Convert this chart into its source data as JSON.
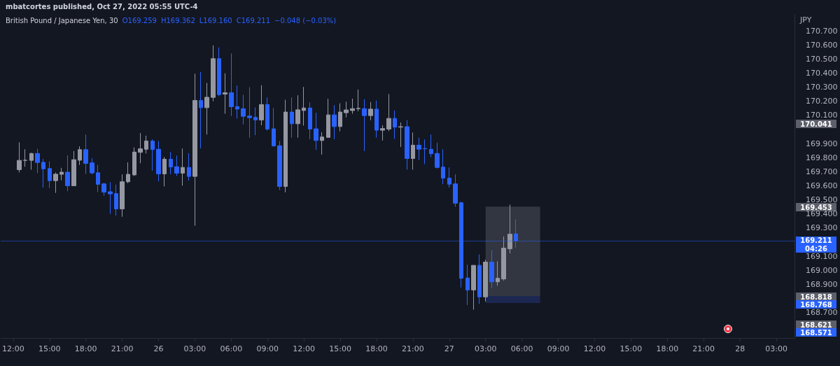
{
  "chart_data": {
    "type": "candlestick",
    "title": "mbatcortes published, Oct 27, 2022 05:55 UTC-4",
    "subtitle": "British Pound / Japanese Yen, 30",
    "ylabel": "JPY",
    "x": [
      "2022-10-25T12:30",
      "2022-10-25T13:00",
      "2022-10-25T13:30",
      "2022-10-25T14:00",
      "2022-10-25T14:30",
      "2022-10-25T15:00",
      "2022-10-25T15:30",
      "2022-10-25T16:00",
      "2022-10-25T16:30",
      "2022-10-25T17:00",
      "2022-10-25T17:30",
      "2022-10-25T18:00",
      "2022-10-25T18:30",
      "2022-10-25T19:00",
      "2022-10-25T19:30",
      "2022-10-25T20:00",
      "2022-10-25T20:30",
      "2022-10-25T21:00",
      "2022-10-25T21:30",
      "2022-10-25T22:00",
      "2022-10-25T22:30",
      "2022-10-25T23:00",
      "2022-10-25T23:30",
      "2022-10-26T00:00",
      "2022-10-26T00:30",
      "2022-10-26T01:00",
      "2022-10-26T01:30",
      "2022-10-26T02:00",
      "2022-10-26T02:30",
      "2022-10-26T03:00",
      "2022-10-26T03:30",
      "2022-10-26T04:00",
      "2022-10-26T04:30",
      "2022-10-26T05:00",
      "2022-10-26T05:30",
      "2022-10-26T06:00",
      "2022-10-26T06:30",
      "2022-10-26T07:00",
      "2022-10-26T07:30",
      "2022-10-26T08:00",
      "2022-10-26T08:30",
      "2022-10-26T09:00",
      "2022-10-26T09:30",
      "2022-10-26T10:00",
      "2022-10-26T10:30",
      "2022-10-26T11:00",
      "2022-10-26T11:30",
      "2022-10-26T12:00",
      "2022-10-26T12:30",
      "2022-10-26T13:00",
      "2022-10-26T13:30",
      "2022-10-26T14:00",
      "2022-10-26T14:30",
      "2022-10-26T15:00",
      "2022-10-26T15:30",
      "2022-10-26T16:00",
      "2022-10-26T16:30",
      "2022-10-26T17:00",
      "2022-10-26T17:30",
      "2022-10-26T18:00",
      "2022-10-26T18:30",
      "2022-10-26T19:00",
      "2022-10-26T19:30",
      "2022-10-26T20:00",
      "2022-10-26T20:30",
      "2022-10-26T21:00",
      "2022-10-26T21:30",
      "2022-10-26T22:00",
      "2022-10-26T22:30",
      "2022-10-26T23:00",
      "2022-10-26T23:30",
      "2022-10-27T00:00",
      "2022-10-27T00:30",
      "2022-10-27T01:00",
      "2022-10-27T01:30",
      "2022-10-27T02:00",
      "2022-10-27T02:30",
      "2022-10-27T03:00",
      "2022-10-27T03:30",
      "2022-10-27T04:00",
      "2022-10-27T04:30",
      "2022-10-27T05:00",
      "2022-10-27T05:30"
    ],
    "ohlc": [
      [
        169.715,
        169.909,
        169.695,
        169.781
      ],
      [
        169.781,
        169.86,
        169.736,
        169.782
      ],
      [
        169.781,
        169.835,
        169.715,
        169.83
      ],
      [
        169.83,
        169.863,
        169.69,
        169.766
      ],
      [
        169.767,
        169.791,
        169.588,
        169.721
      ],
      [
        169.723,
        169.774,
        169.584,
        169.637
      ],
      [
        169.637,
        169.695,
        169.55,
        169.683
      ],
      [
        169.682,
        169.728,
        169.64,
        169.697
      ],
      [
        169.697,
        169.817,
        169.563,
        169.601
      ],
      [
        169.601,
        169.847,
        169.601,
        169.786
      ],
      [
        169.782,
        169.881,
        169.748,
        169.857
      ],
      [
        169.857,
        169.964,
        169.685,
        169.759
      ],
      [
        169.763,
        169.796,
        169.682,
        169.692
      ],
      [
        169.693,
        169.749,
        169.556,
        169.611
      ],
      [
        169.614,
        169.621,
        169.53,
        169.556
      ],
      [
        169.558,
        169.626,
        169.401,
        169.543
      ],
      [
        169.545,
        169.609,
        169.388,
        169.436
      ],
      [
        169.436,
        169.682,
        169.381,
        169.629
      ],
      [
        169.629,
        169.767,
        169.619,
        169.682
      ],
      [
        169.678,
        169.873,
        169.67,
        169.84
      ],
      [
        169.838,
        169.975,
        169.761,
        169.863
      ],
      [
        169.86,
        169.956,
        169.83,
        169.919
      ],
      [
        169.918,
        169.931,
        169.708,
        169.858
      ],
      [
        169.86,
        169.918,
        169.632,
        169.685
      ],
      [
        169.685,
        169.805,
        169.596,
        169.789
      ],
      [
        169.789,
        169.84,
        169.682,
        169.734
      ],
      [
        169.736,
        169.815,
        169.67,
        169.69
      ],
      [
        169.69,
        169.865,
        169.601,
        169.731
      ],
      [
        169.731,
        169.832,
        169.637,
        169.667
      ],
      [
        169.667,
        170.396,
        169.317,
        170.206
      ],
      [
        170.206,
        170.409,
        169.866,
        170.155
      ],
      [
        170.155,
        170.33,
        169.964,
        170.229
      ],
      [
        170.228,
        170.597,
        170.201,
        170.503
      ],
      [
        170.503,
        170.583,
        170.236,
        170.248
      ],
      [
        170.251,
        170.399,
        170.112,
        170.261
      ],
      [
        170.261,
        170.54,
        170.096,
        170.162
      ],
      [
        170.163,
        170.312,
        170.078,
        170.145
      ],
      [
        170.148,
        170.246,
        170.036,
        170.094
      ],
      [
        170.096,
        170.3,
        169.942,
        170.084
      ],
      [
        170.086,
        170.157,
        169.959,
        170.068
      ],
      [
        170.068,
        170.314,
        170.03,
        170.177
      ],
      [
        170.177,
        170.228,
        169.992,
        170.003
      ],
      [
        170.005,
        170.152,
        169.883,
        169.883
      ],
      [
        169.885,
        169.918,
        169.571,
        169.596
      ],
      [
        169.596,
        170.211,
        169.554,
        170.124
      ],
      [
        170.124,
        170.228,
        169.942,
        170.041
      ],
      [
        170.041,
        170.243,
        169.942,
        170.14
      ],
      [
        170.135,
        170.302,
        170.028,
        170.153
      ],
      [
        170.153,
        170.193,
        169.931,
        170.003
      ],
      [
        170.005,
        170.119,
        169.856,
        169.922
      ],
      [
        169.922,
        169.98,
        169.822,
        169.947
      ],
      [
        169.944,
        170.218,
        169.944,
        170.104
      ],
      [
        170.104,
        170.173,
        169.931,
        170.021
      ],
      [
        170.021,
        170.186,
        169.987,
        170.124
      ],
      [
        170.119,
        170.198,
        170.086,
        170.139
      ],
      [
        170.135,
        170.219,
        170.112,
        170.148
      ],
      [
        170.148,
        170.284,
        170.129,
        170.15
      ],
      [
        170.148,
        170.215,
        169.847,
        170.099
      ],
      [
        170.099,
        170.195,
        170.066,
        170.145
      ],
      [
        170.145,
        170.206,
        169.942,
        169.995
      ],
      [
        169.995,
        170.03,
        169.922,
        170.007
      ],
      [
        170.003,
        170.252,
        169.988,
        170.079
      ],
      [
        170.079,
        170.135,
        169.934,
        170.017
      ],
      [
        170.017,
        170.05,
        169.876,
        170.02
      ],
      [
        170.02,
        170.066,
        169.715,
        169.794
      ],
      [
        169.794,
        169.979,
        169.715,
        169.889
      ],
      [
        169.889,
        169.942,
        169.784,
        169.86
      ],
      [
        169.865,
        169.929,
        169.754,
        169.863
      ],
      [
        169.86,
        169.965,
        169.804,
        169.828
      ],
      [
        169.83,
        169.906,
        169.724,
        169.731
      ],
      [
        169.733,
        169.86,
        169.612,
        169.655
      ],
      [
        169.655,
        169.731,
        169.588,
        169.612
      ],
      [
        169.614,
        169.682,
        169.452,
        169.477
      ],
      [
        169.48,
        169.487,
        168.878,
        168.944
      ],
      [
        168.946,
        169.04,
        168.754,
        168.861
      ],
      [
        168.861,
        169.036,
        168.721,
        169.036
      ],
      [
        169.036,
        169.114,
        168.762,
        168.812
      ],
      [
        168.812,
        169.076,
        168.779,
        169.059
      ],
      [
        169.059,
        169.144,
        168.873,
        168.919
      ],
      [
        168.919,
        169.064,
        168.891,
        168.944
      ],
      [
        168.939,
        169.241,
        168.927,
        169.158
      ],
      [
        169.153,
        169.467,
        169.121,
        169.257
      ],
      [
        169.259,
        169.362,
        169.16,
        169.211
      ]
    ],
    "colors": [
      "#9598a1",
      "#9598a1",
      "#9598a1",
      "#2962ff",
      "#2962ff",
      "#2962ff",
      "#9598a1",
      "#9598a1",
      "#2962ff",
      "#9598a1",
      "#9598a1",
      "#2962ff",
      "#2962ff",
      "#2962ff",
      "#2962ff",
      "#2962ff",
      "#2962ff",
      "#9598a1",
      "#9598a1",
      "#9598a1",
      "#9598a1",
      "#9598a1",
      "#2962ff",
      "#2962ff",
      "#9598a1",
      "#2962ff",
      "#2962ff",
      "#9598a1",
      "#2962ff",
      "#9598a1",
      "#2962ff",
      "#9598a1",
      "#9598a1",
      "#2962ff",
      "#9598a1",
      "#2962ff",
      "#2962ff",
      "#2962ff",
      "#2962ff",
      "#2962ff",
      "#9598a1",
      "#2962ff",
      "#2962ff",
      "#2962ff",
      "#9598a1",
      "#2962ff",
      "#9598a1",
      "#9598a1",
      "#2962ff",
      "#2962ff",
      "#9598a1",
      "#9598a1",
      "#2962ff",
      "#9598a1",
      "#9598a1",
      "#9598a1",
      "#9598a1",
      "#2962ff",
      "#9598a1",
      "#2962ff",
      "#9598a1",
      "#9598a1",
      "#2962ff",
      "#9598a1",
      "#2962ff",
      "#9598a1",
      "#2962ff",
      "#2962ff",
      "#2962ff",
      "#2962ff",
      "#2962ff",
      "#2962ff",
      "#2962ff",
      "#2962ff",
      "#2962ff",
      "#9598a1",
      "#2962ff",
      "#9598a1",
      "#2962ff",
      "#9598a1",
      "#9598a1",
      "#9598a1",
      "#2962ff"
    ],
    "xlim": [
      "2022-10-25T11:00",
      "2022-10-28T04:30"
    ],
    "xticks": [
      {
        "value": "2022-10-25T12:00",
        "label": "12:00"
      },
      {
        "value": "2022-10-25T15:00",
        "label": "15:00"
      },
      {
        "value": "2022-10-25T18:00",
        "label": "18:00"
      },
      {
        "value": "2022-10-25T21:00",
        "label": "21:00"
      },
      {
        "value": "2022-10-26T00:00",
        "label": "26"
      },
      {
        "value": "2022-10-26T03:00",
        "label": "03:00"
      },
      {
        "value": "2022-10-26T06:00",
        "label": "06:00"
      },
      {
        "value": "2022-10-26T09:00",
        "label": "09:00"
      },
      {
        "value": "2022-10-26T12:00",
        "label": "12:00"
      },
      {
        "value": "2022-10-26T15:00",
        "label": "15:00"
      },
      {
        "value": "2022-10-26T18:00",
        "label": "18:00"
      },
      {
        "value": "2022-10-26T21:00",
        "label": "21:00"
      },
      {
        "value": "2022-10-27T00:00",
        "label": "27"
      },
      {
        "value": "2022-10-27T03:00",
        "label": "03:00"
      },
      {
        "value": "2022-10-27T06:00",
        "label": "06:00"
      },
      {
        "value": "2022-10-27T09:00",
        "label": "09:00"
      },
      {
        "value": "2022-10-27T12:00",
        "label": "12:00"
      },
      {
        "value": "2022-10-27T15:00",
        "label": "15:00"
      },
      {
        "value": "2022-10-27T18:00",
        "label": "18:00"
      },
      {
        "value": "2022-10-27T21:00",
        "label": "21:00"
      },
      {
        "value": "2022-10-28T00:00",
        "label": "28"
      },
      {
        "value": "2022-10-28T03:00",
        "label": "03:00"
      }
    ],
    "ylim": [
      168.52,
      170.82
    ],
    "yticks": [
      {
        "value": 168.7,
        "label": "168.700"
      },
      {
        "value": 168.9,
        "label": "168.900"
      },
      {
        "value": 169.0,
        "label": "169.000"
      },
      {
        "value": 169.1,
        "label": "169.100"
      },
      {
        "value": 169.3,
        "label": "169.300"
      },
      {
        "value": 169.4,
        "label": "169.400"
      },
      {
        "value": 169.5,
        "label": "169.500"
      },
      {
        "value": 169.6,
        "label": "169.600"
      },
      {
        "value": 169.7,
        "label": "169.700"
      },
      {
        "value": 169.8,
        "label": "169.800"
      },
      {
        "value": 169.9,
        "label": "169.900"
      },
      {
        "value": 170.1,
        "label": "170.100"
      },
      {
        "value": 170.2,
        "label": "170.200"
      },
      {
        "value": 170.3,
        "label": "170.300"
      },
      {
        "value": 170.4,
        "label": "170.400"
      },
      {
        "value": 170.5,
        "label": "170.500"
      },
      {
        "value": 170.6,
        "label": "170.600"
      },
      {
        "value": 170.7,
        "label": "170.700"
      }
    ],
    "ref_lines": [
      {
        "axis": "y",
        "value": 169.211,
        "label": "169.211",
        "color": "#2962ff",
        "line_style": "dotted"
      }
    ],
    "bands": [
      {
        "axis": "y",
        "from": 168.818,
        "to": 169.453,
        "color": "#363a45"
      },
      {
        "axis": "y",
        "from": 168.768,
        "to": 168.818,
        "color": "#1e2a56"
      }
    ],
    "annotations": [
      "O169.259",
      "H169.362",
      "L169.160",
      "C169.211",
      "−0.048 (−0.03%)",
      "170.041",
      "169.453",
      "04:26",
      "168.818",
      "168.768",
      "168.621",
      "168.571"
    ]
  }
}
